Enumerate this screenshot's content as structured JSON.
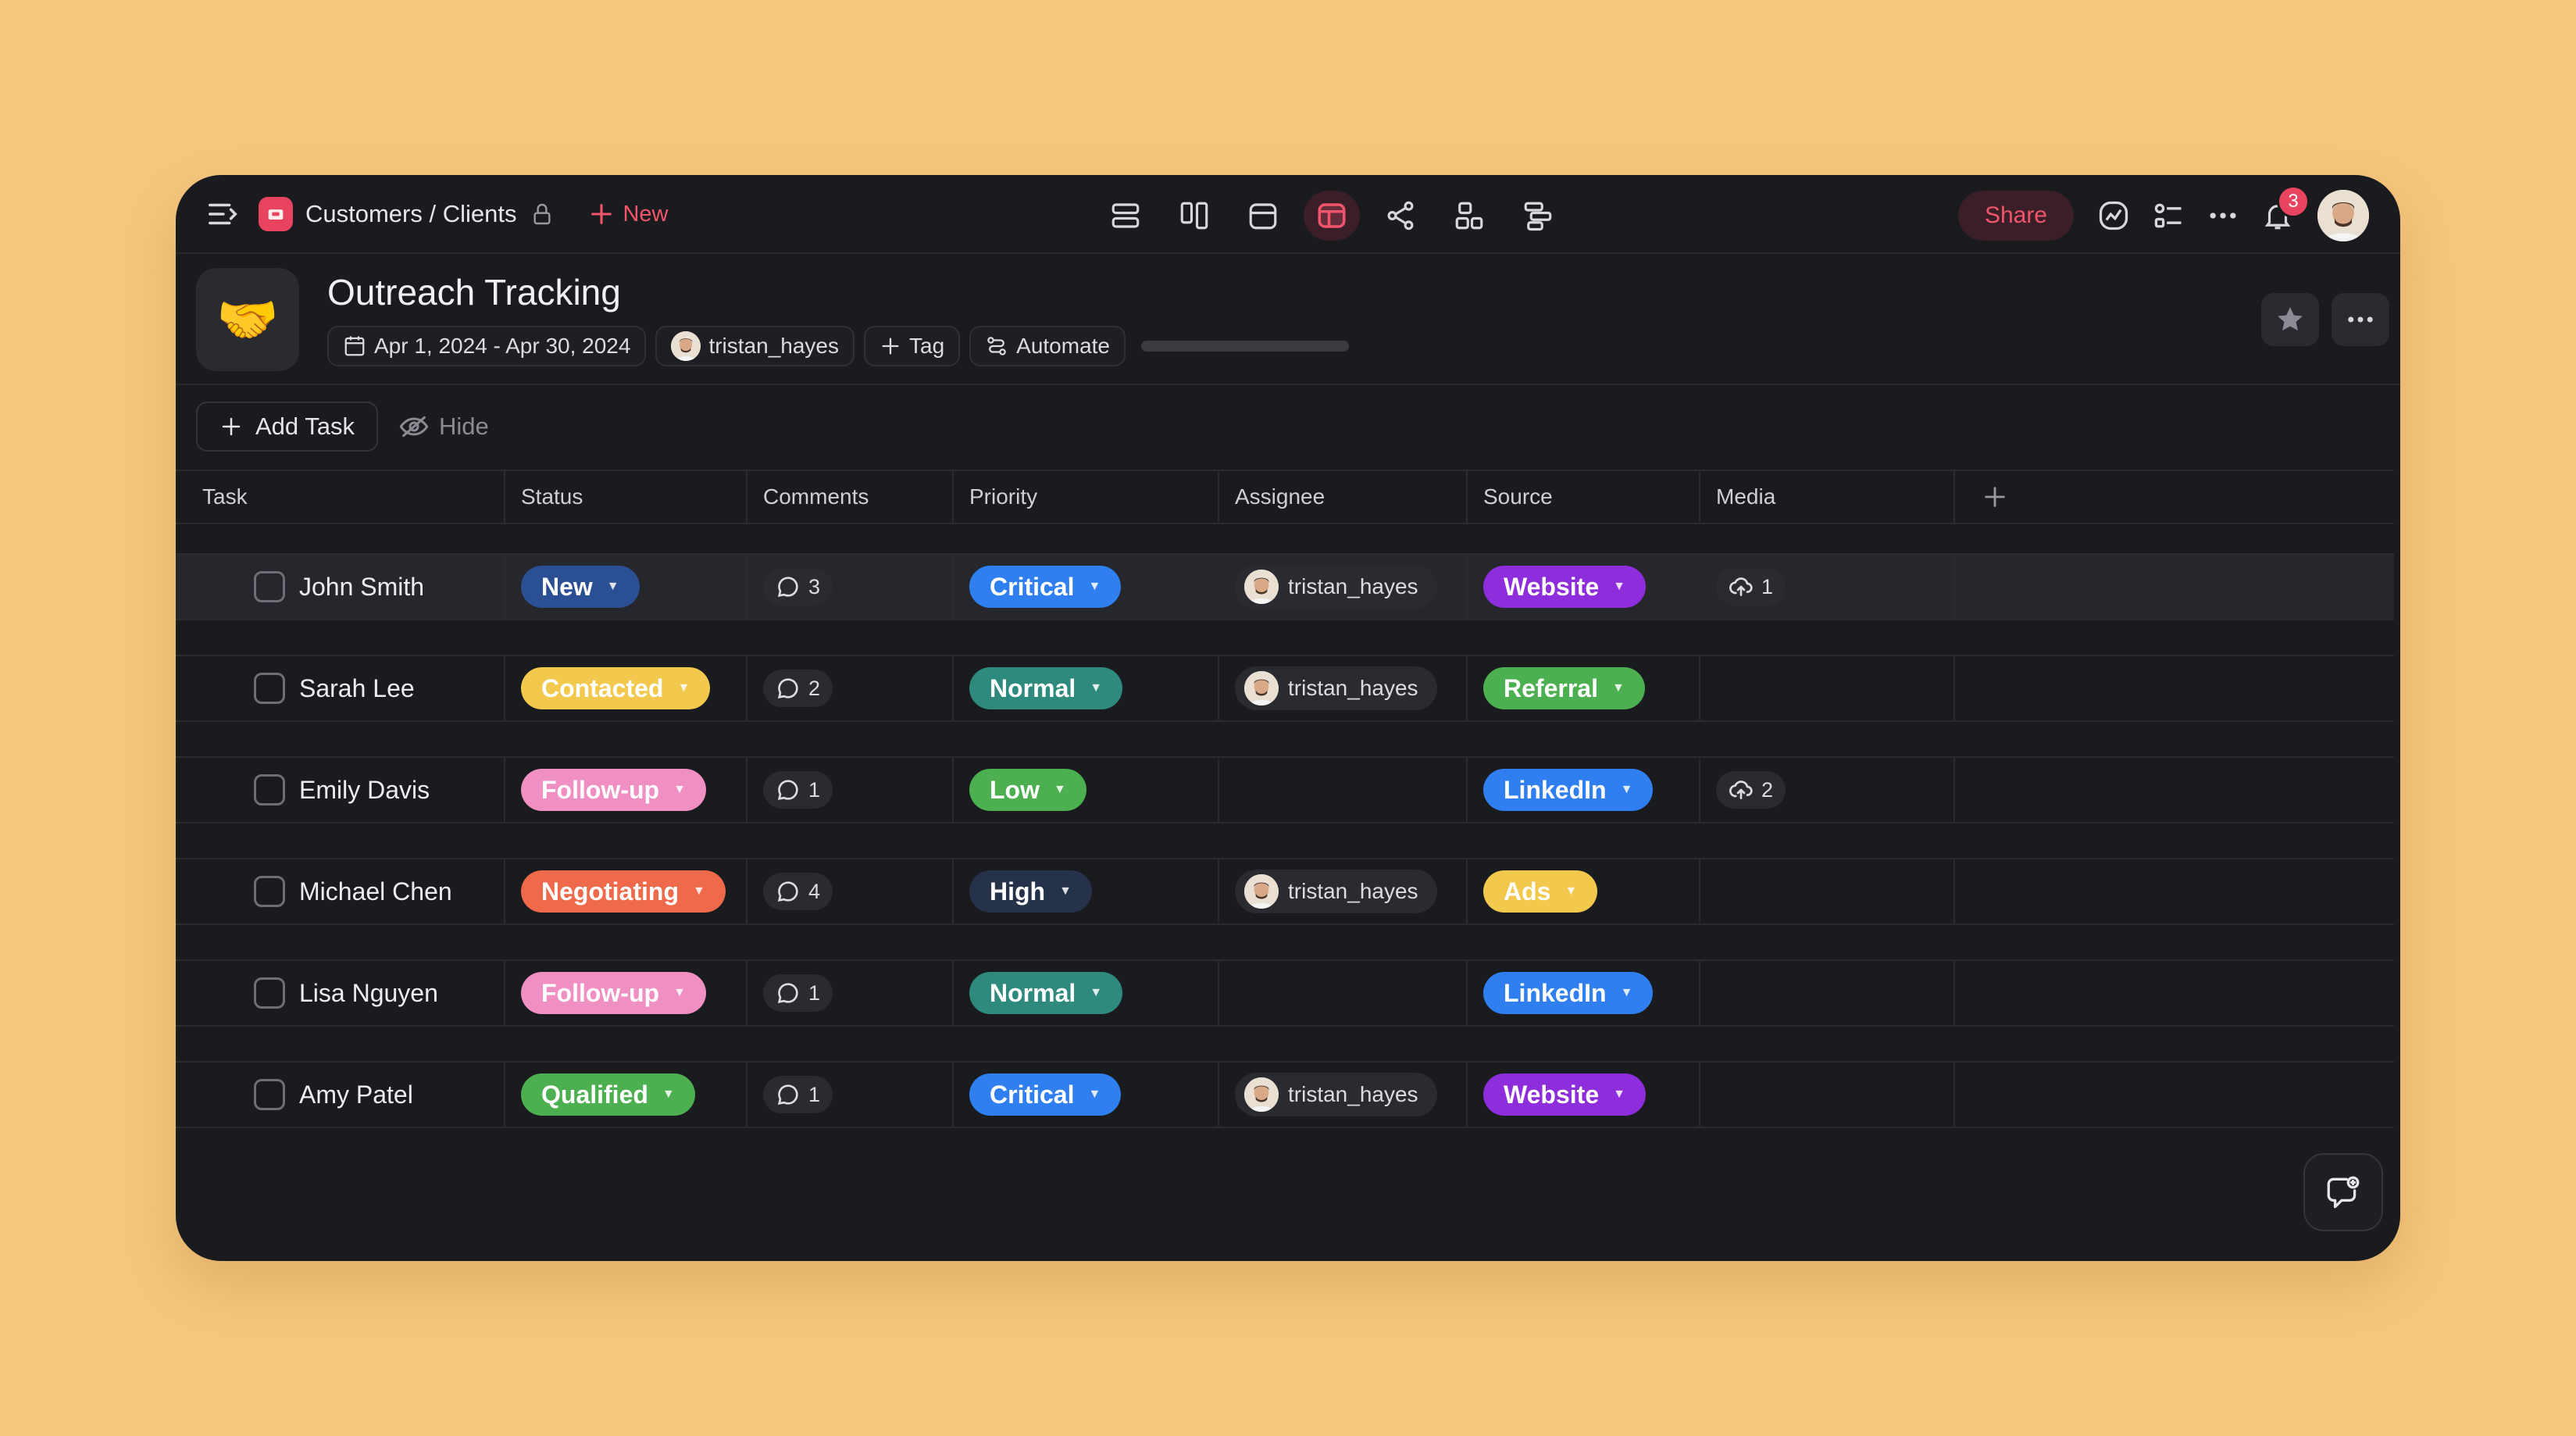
{
  "breadcrumb": {
    "path": "Customers / Clients",
    "new_label": "New"
  },
  "toolbar_right": {
    "share_label": "Share",
    "notification_count": "3"
  },
  "project": {
    "icon": "🤝",
    "title": "Outreach Tracking",
    "date_range": "Apr 1, 2024 - Apr 30, 2024",
    "owner": "tristan_hayes",
    "tag_label": "Tag",
    "automate_label": "Automate",
    "progress_fraction": 0
  },
  "actions": {
    "add_task": "Add Task",
    "hide": "Hide"
  },
  "columns": [
    "Task",
    "Status",
    "Comments",
    "Priority",
    "Assignee",
    "Source",
    "Media"
  ],
  "rows": [
    {
      "task": "John Smith",
      "status": "New",
      "comments": "3",
      "priority": "Critical",
      "assignee": "tristan_hayes",
      "source": "Website",
      "media": "1"
    },
    {
      "task": "Sarah Lee",
      "status": "Contacted",
      "comments": "2",
      "priority": "Normal",
      "assignee": "tristan_hayes",
      "source": "Referral",
      "media": ""
    },
    {
      "task": "Emily Davis",
      "status": "Follow-up",
      "comments": "1",
      "priority": "Low",
      "assignee": "",
      "source": "LinkedIn",
      "media": "2"
    },
    {
      "task": "Michael Chen",
      "status": "Negotiating",
      "comments": "4",
      "priority": "High",
      "assignee": "tristan_hayes",
      "source": "Ads",
      "media": ""
    },
    {
      "task": "Lisa Nguyen",
      "status": "Follow-up",
      "comments": "1",
      "priority": "Normal",
      "assignee": "",
      "source": "LinkedIn",
      "media": ""
    },
    {
      "task": "Amy Patel",
      "status": "Qualified",
      "comments": "1",
      "priority": "Critical",
      "assignee": "tristan_hayes",
      "source": "Website",
      "media": ""
    }
  ],
  "colors": {
    "accent": "#e8445f",
    "status": {
      "New": "#2b4f93",
      "Contacted": "#f2c94c",
      "Follow-up": "#ef8fc2",
      "Negotiating": "#ee6a4a",
      "Qualified": "#4caf50"
    },
    "status_text": {
      "New": "#ffffff",
      "Contacted": "#ffffff",
      "Follow-up": "#ffffff",
      "Negotiating": "#ffffff",
      "Qualified": "#ffffff"
    },
    "priority": {
      "Critical": "#2f7ff0",
      "Normal": "#2f8a7e",
      "Low": "#4caf50",
      "High": "#26314a"
    },
    "source": {
      "Website": "#8e2ddb",
      "Referral": "#4caf50",
      "LinkedIn": "#2f7ff0",
      "Ads": "#f2c94c"
    }
  },
  "icons": [
    "menu-collapse-icon",
    "lock-icon",
    "plus-icon",
    "list-view-icon",
    "board-view-icon",
    "calendar-view-icon",
    "table-view-icon",
    "mindmap-view-icon",
    "layout-view-icon",
    "gantt-view-icon",
    "activity-icon",
    "filter-icon",
    "more-icon",
    "bell-icon",
    "calendar-icon",
    "automate-icon",
    "star-icon",
    "eye-off-icon",
    "comment-icon",
    "upload-icon",
    "feedback-icon"
  ]
}
